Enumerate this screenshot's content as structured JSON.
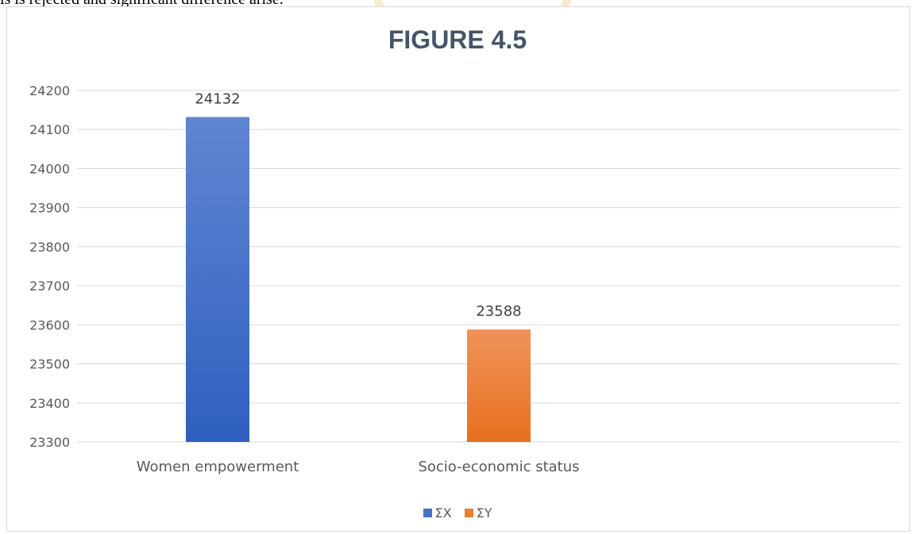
{
  "document": {
    "text_above": "is is rejected and significant difference arise."
  },
  "chart_data": {
    "type": "bar",
    "title": "FIGURE 4.5",
    "categories": [
      "Women empowerment",
      "Socio-economic status"
    ],
    "series": [
      {
        "name": "ΣX",
        "color": "#4472c4",
        "values": [
          24132,
          null
        ]
      },
      {
        "name": "ΣY",
        "color": "#ed7d31",
        "values": [
          null,
          23588
        ]
      }
    ],
    "ylim": [
      23300,
      24200
    ],
    "yticks": [
      23300,
      23400,
      23500,
      23600,
      23700,
      23800,
      23900,
      24000,
      24100,
      24200
    ],
    "grid": true,
    "legend": "bottom-center",
    "data_labels": true,
    "xlabel": "",
    "ylabel": ""
  }
}
